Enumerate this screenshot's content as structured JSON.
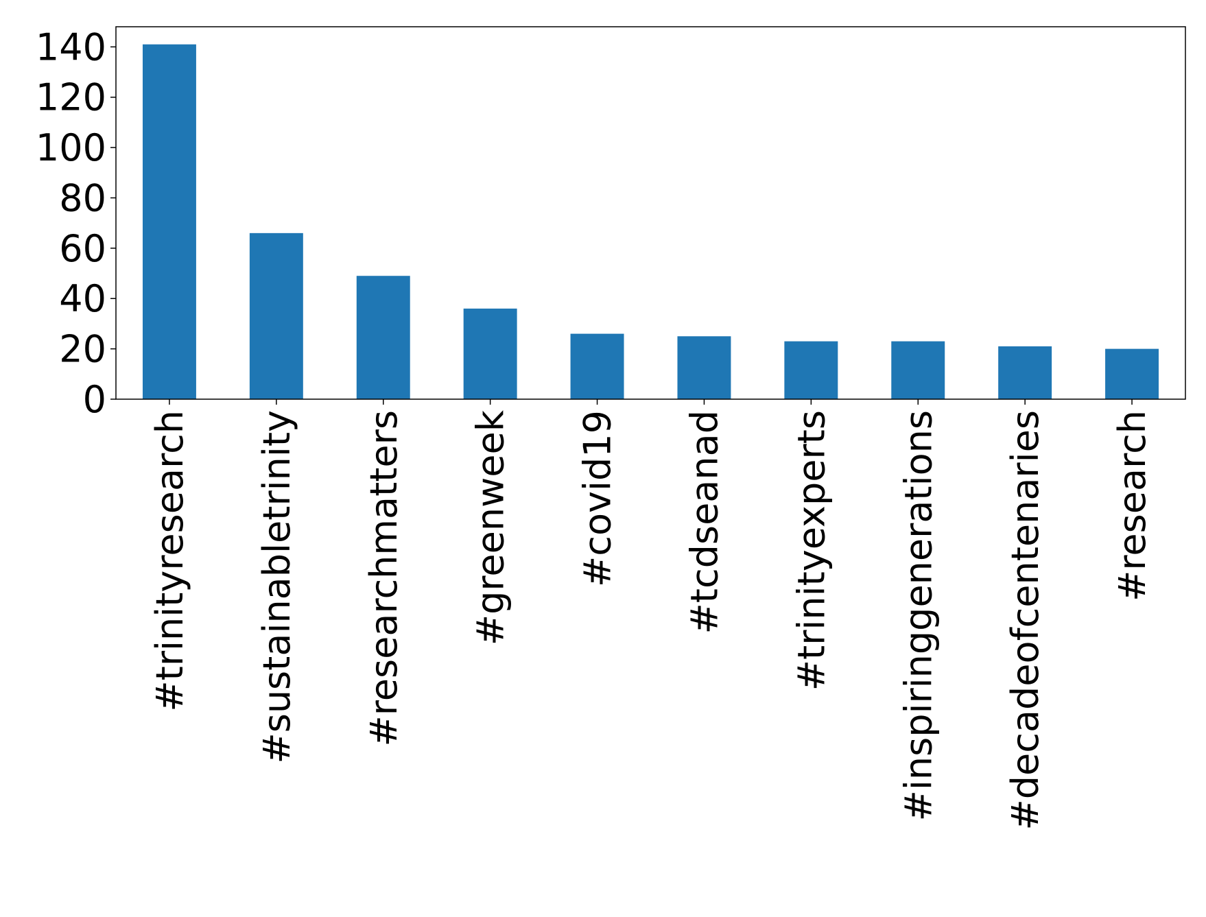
{
  "chart_data": {
    "type": "bar",
    "categories": [
      "#trinityresearch",
      "#sustainabletrinity",
      "#researchmatters",
      "#greenweek",
      "#covid19",
      "#tcdseanad",
      "#trinityexperts",
      "#inspiringgenerations",
      "#decadeofcentenaries",
      "#research"
    ],
    "values": [
      141,
      66,
      49,
      36,
      26,
      25,
      23,
      23,
      21,
      20
    ],
    "color": "#1f77b4",
    "ylim": [
      0,
      148
    ],
    "yticks": [
      0,
      20,
      40,
      60,
      80,
      100,
      120,
      140
    ],
    "grid": false
  }
}
